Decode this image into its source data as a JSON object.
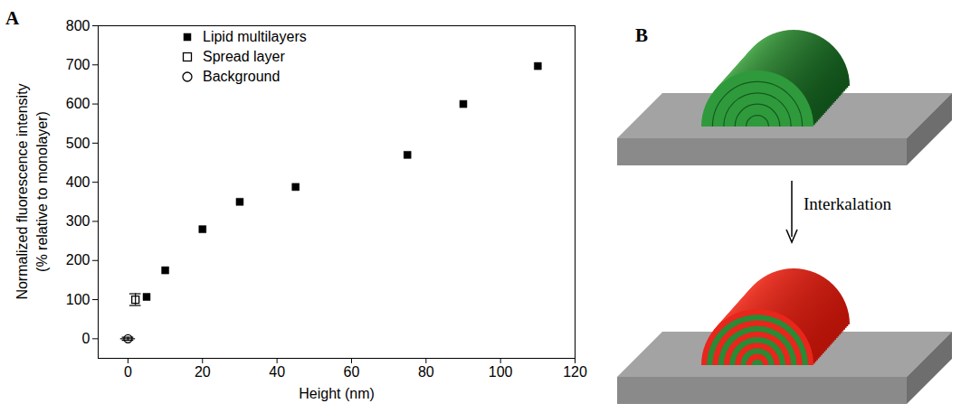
{
  "chart_data": {
    "type": "scatter",
    "panel_label": "A",
    "xlabel": "Height (nm)",
    "ylabel": [
      "Normalized fluorescence intensity",
      "(% relative to monolayer)"
    ],
    "xlim": [
      -8,
      120
    ],
    "xticks": [
      0,
      20,
      40,
      60,
      80,
      100,
      120
    ],
    "ylim": [
      -50,
      800
    ],
    "yticks": [
      0,
      100,
      200,
      300,
      400,
      500,
      600,
      700,
      800
    ],
    "legend": "top-left",
    "series": [
      {
        "name": "Lipid multilayers",
        "marker": "square",
        "color": "#000000",
        "x": [
          5,
          10,
          20,
          30,
          45,
          75,
          90,
          110
        ],
        "values": [
          107,
          175,
          280,
          350,
          388,
          470,
          600,
          697
        ]
      },
      {
        "name": "Spread layer",
        "marker": "open-square",
        "color": "#000000",
        "x": [
          2
        ],
        "values": [
          100
        ],
        "errors": [
          15
        ]
      },
      {
        "name": "Background",
        "marker": "open-circle",
        "color": "#000000",
        "x": [
          0
        ],
        "values": [
          0
        ],
        "errors": [
          4
        ],
        "xerrors": [
          2
        ]
      }
    ]
  },
  "diagram": {
    "panel_label": "B",
    "arrow_label": "Interkalation"
  }
}
